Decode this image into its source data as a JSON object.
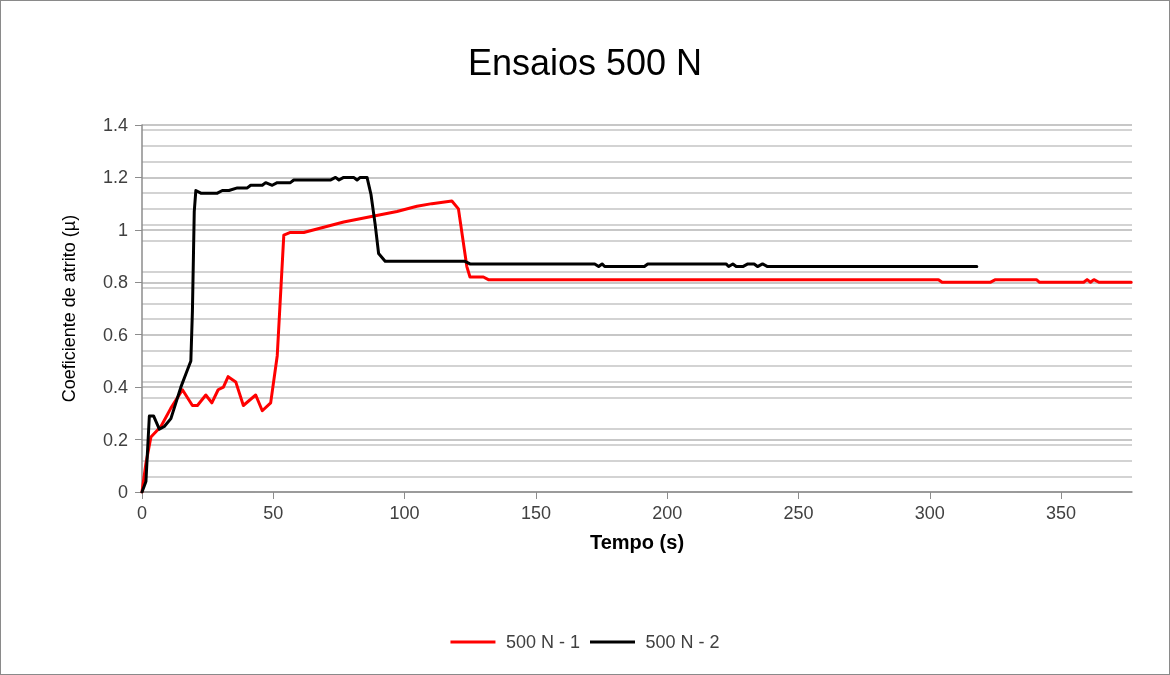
{
  "chart_data": {
    "type": "line",
    "title": "Ensaios 500 N",
    "xlabel": "Tempo (s)",
    "ylabel": "Coeficiente de atrito (µ)",
    "xlim": [
      0,
      377
    ],
    "xticks": [
      0,
      50,
      100,
      150,
      200,
      250,
      300,
      350
    ],
    "ylim": [
      0,
      1.4
    ],
    "yticks": [
      0,
      0.2,
      0.4,
      0.6,
      0.8,
      1,
      1.2,
      1.4
    ],
    "grid": "y",
    "legend": "bottom",
    "marker": "none",
    "line_style": "solid",
    "series": [
      {
        "name": "500 N - 1",
        "color": "#ff0000",
        "x": [
          0,
          1.5,
          3.4,
          7.2,
          11,
          15.4,
          19.2,
          21.1,
          24.3,
          26.6,
          29,
          31,
          32.8,
          35.7,
          38.6,
          43.3,
          45.8,
          49,
          51.5,
          54,
          56.5,
          61.6,
          69.2,
          76.8,
          86.9,
          97.1,
          104.7,
          110.4,
          118,
          120.5,
          123.7,
          124.9,
          130,
          131.9,
          303.3,
          304.7,
          323,
          325,
          340.6,
          341.8,
          358.6,
          359.9,
          361.2,
          362.5,
          364.4,
          376.7
        ],
        "values": [
          0,
          0.11,
          0.21,
          0.25,
          0.32,
          0.39,
          0.33,
          0.33,
          0.37,
          0.34,
          0.39,
          0.4,
          0.44,
          0.42,
          0.33,
          0.37,
          0.31,
          0.34,
          0.52,
          0.98,
          0.99,
          0.99,
          1.01,
          1.03,
          1.05,
          1.07,
          1.09,
          1.1,
          1.11,
          1.08,
          0.86,
          0.82,
          0.82,
          0.81,
          0.81,
          0.8,
          0.8,
          0.81,
          0.81,
          0.8,
          0.8,
          0.81,
          0.8,
          0.81,
          0.8,
          0.8
        ]
      },
      {
        "name": "500 N - 2",
        "color": "#000000",
        "x": [
          0,
          1.5,
          2.8,
          4.4,
          6.6,
          8.5,
          11,
          12.9,
          14.8,
          16.7,
          18.6,
          19.2,
          19.9,
          20.5,
          22.4,
          28.7,
          30.6,
          33.1,
          36.3,
          40.1,
          41.4,
          45.8,
          47.1,
          49.6,
          51.5,
          56.5,
          57.8,
          71.7,
          73.7,
          75,
          76.8,
          80.6,
          81.9,
          83.1,
          85.7,
          87.2,
          88.8,
          90.1,
          92.6,
          123,
          124.9,
          172.4,
          173.9,
          175.2,
          176.2,
          191.3,
          192.6,
          222.4,
          223.4,
          225,
          226.3,
          228.8,
          230.7,
          233.1,
          234.4,
          236.3,
          238.2,
          317.9
        ],
        "values": [
          0,
          0.04,
          0.29,
          0.29,
          0.24,
          0.25,
          0.28,
          0.34,
          0.4,
          0.45,
          0.5,
          0.69,
          1.07,
          1.15,
          1.14,
          1.14,
          1.15,
          1.15,
          1.16,
          1.16,
          1.17,
          1.17,
          1.18,
          1.17,
          1.18,
          1.18,
          1.19,
          1.19,
          1.2,
          1.19,
          1.2,
          1.2,
          1.19,
          1.2,
          1.2,
          1.135,
          1.02,
          0.91,
          0.88,
          0.88,
          0.87,
          0.87,
          0.86,
          0.87,
          0.86,
          0.86,
          0.87,
          0.87,
          0.86,
          0.87,
          0.86,
          0.86,
          0.87,
          0.87,
          0.86,
          0.87,
          0.86,
          0.86
        ]
      }
    ]
  }
}
